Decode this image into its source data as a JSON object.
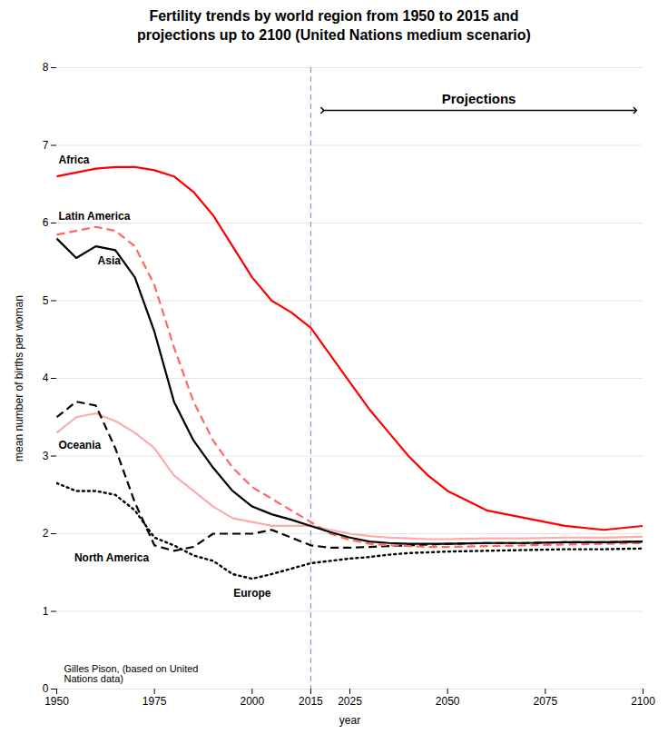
{
  "chart_data": {
    "type": "line",
    "title": "Fertility trends by world region from 1950 to 2015 and\nprojections up to 2100 (United Nations medium scenario)",
    "xlabel": "year",
    "ylabel": "mean number of births per woman",
    "xlim": [
      1950,
      2100
    ],
    "ylim": [
      0,
      8
    ],
    "xticks": [
      1950,
      1975,
      2000,
      2015,
      2025,
      2050,
      2075,
      2100
    ],
    "yticks": [
      0,
      1,
      2,
      3,
      4,
      5,
      6,
      7,
      8
    ],
    "grid": "y",
    "x": [
      1950,
      1955,
      1960,
      1965,
      1970,
      1975,
      1980,
      1985,
      1990,
      1995,
      2000,
      2005,
      2010,
      2015,
      2020,
      2025,
      2030,
      2035,
      2040,
      2045,
      2050,
      2060,
      2070,
      2080,
      2090,
      2100
    ],
    "series": [
      {
        "name": "Oceania",
        "color": "#ffaaaa",
        "line_style": "solid",
        "values": [
          3.3,
          3.5,
          3.55,
          3.45,
          3.3,
          3.1,
          2.75,
          2.55,
          2.35,
          2.2,
          2.15,
          2.1,
          2.1,
          2.1,
          2.05,
          2.0,
          1.97,
          1.95,
          1.94,
          1.93,
          1.93,
          1.94,
          1.94,
          1.95,
          1.95,
          1.96
        ]
      },
      {
        "name": "North America",
        "color": "#000000",
        "line_style": "dashed",
        "values": [
          3.5,
          3.7,
          3.65,
          3.1,
          2.4,
          1.85,
          1.78,
          1.83,
          2.0,
          2.0,
          2.0,
          2.05,
          1.95,
          1.85,
          1.82,
          1.82,
          1.83,
          1.84,
          1.85,
          1.86,
          1.87,
          1.88,
          1.88,
          1.89,
          1.89,
          1.9
        ]
      },
      {
        "name": "Europe",
        "color": "#000000",
        "line_style": "dotted",
        "values": [
          2.65,
          2.55,
          2.55,
          2.5,
          2.3,
          1.95,
          1.85,
          1.72,
          1.65,
          1.48,
          1.42,
          1.48,
          1.55,
          1.62,
          1.65,
          1.68,
          1.7,
          1.73,
          1.75,
          1.76,
          1.77,
          1.78,
          1.79,
          1.8,
          1.8,
          1.81
        ]
      },
      {
        "name": "Latin America",
        "color": "#ff6666",
        "line_style": "dashed",
        "values": [
          5.85,
          5.9,
          5.95,
          5.9,
          5.7,
          5.2,
          4.4,
          3.7,
          3.2,
          2.85,
          2.6,
          2.45,
          2.3,
          2.15,
          2.0,
          1.92,
          1.87,
          1.85,
          1.84,
          1.83,
          1.83,
          1.84,
          1.85,
          1.86,
          1.87,
          1.88
        ]
      },
      {
        "name": "Asia",
        "color": "#000000",
        "line_style": "solid",
        "values": [
          5.8,
          5.55,
          5.7,
          5.65,
          5.3,
          4.6,
          3.7,
          3.2,
          2.85,
          2.55,
          2.35,
          2.25,
          2.18,
          2.1,
          2.02,
          1.95,
          1.9,
          1.88,
          1.87,
          1.87,
          1.87,
          1.88,
          1.88,
          1.89,
          1.89,
          1.9
        ]
      },
      {
        "name": "Africa",
        "color": "#ff0000",
        "line_style": "solid",
        "values": [
          6.6,
          6.65,
          6.7,
          6.72,
          6.72,
          6.68,
          6.6,
          6.4,
          6.1,
          5.7,
          5.3,
          5.0,
          4.85,
          4.65,
          4.3,
          3.95,
          3.6,
          3.3,
          3.0,
          2.75,
          2.55,
          2.3,
          2.2,
          2.1,
          2.05,
          2.1
        ]
      }
    ],
    "vline": {
      "x": 2015,
      "color": "#7799cc",
      "line_style": "dashed"
    },
    "annotations": [
      {
        "text": "Projections",
        "x": [
          2018,
          2098
        ],
        "y": 7.45
      },
      {
        "text": "Gilles Pison, (based on United\nNations data)"
      }
    ]
  }
}
